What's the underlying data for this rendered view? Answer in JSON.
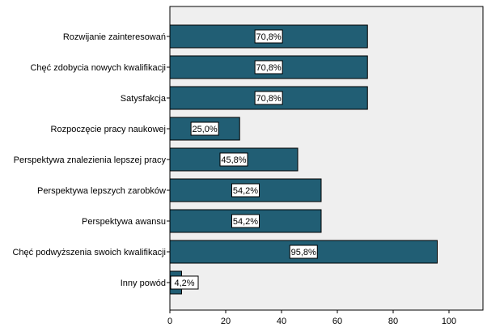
{
  "chart_data": {
    "type": "bar",
    "orientation": "horizontal",
    "categories": [
      "Rozwijanie zainteresowań",
      "Chęć zdobycia nowych kwalifikacji",
      "Satysfakcja",
      "Rozpoczęcie pracy naukowej",
      "Perspektywa znalezienia lepszej pracy",
      "Perspektywa lepszych zarobków",
      "Perspektywa awansu",
      "Chęć podwyższenia swoich kwalifikacji",
      "Inny powód"
    ],
    "values": [
      70.8,
      70.8,
      70.8,
      25.0,
      45.8,
      54.2,
      54.2,
      95.8,
      4.2
    ],
    "data_labels": [
      "70,8%",
      "70,8%",
      "70,8%",
      "25,0%",
      "45,8%",
      "54,2%",
      "54,2%",
      "95,8%",
      "4,2%"
    ],
    "xlim": [
      0,
      112
    ],
    "xticks": [
      0,
      20,
      40,
      60,
      80,
      100
    ],
    "title": "",
    "xlabel": "",
    "ylabel": "",
    "grid": false,
    "colors": {
      "bar": "#215e74",
      "plot_background": "#efefef",
      "axis": "#000000",
      "label_box": "#ffffff"
    }
  }
}
